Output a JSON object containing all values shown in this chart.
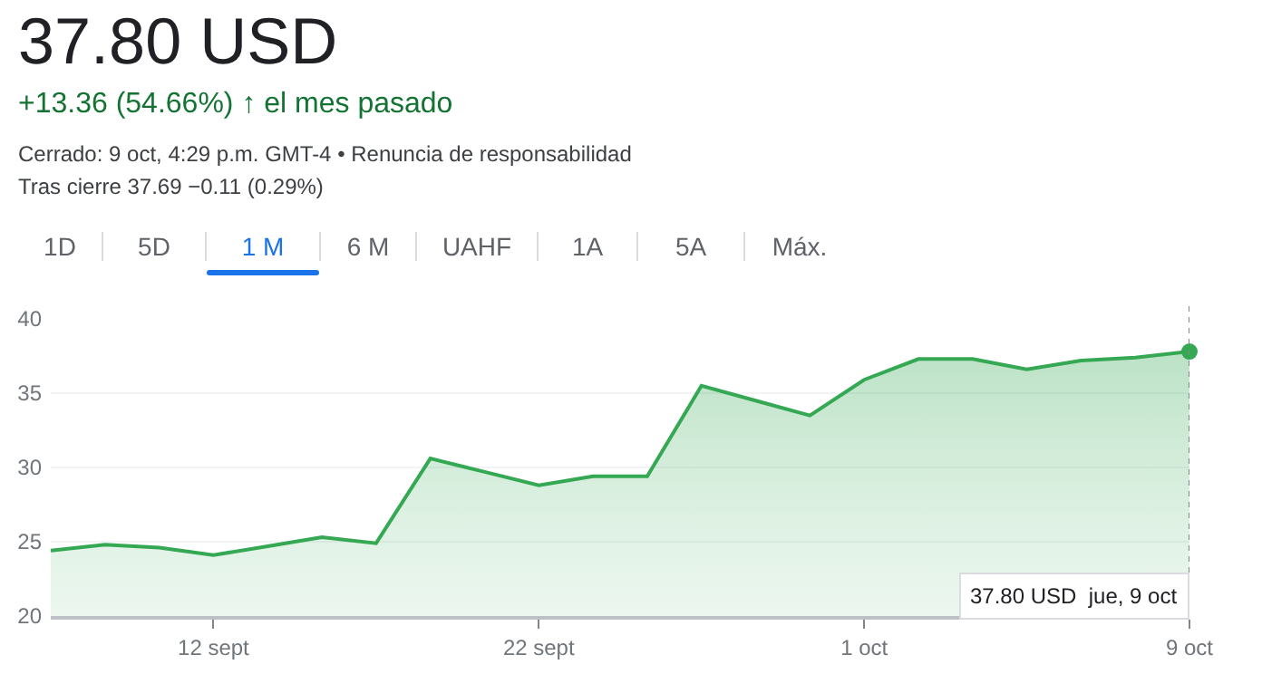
{
  "chart_data": {
    "type": "area",
    "title": "37.80 USD",
    "subtitle": "+13.36 (54.66%) ↑ el mes pasado",
    "annotations": [
      "Cerrado: 9 oct, 4:29 p.m. GMT-4 • Renuncia de responsabilidad",
      "Tras cierre 37.69 −0.11 (0.29%)",
      "1D",
      "5D",
      "1 M",
      "6 M",
      "UAHF",
      "1A",
      "5A",
      "Máx.",
      "37.80 USD  jue, 9 oct"
    ],
    "categories": [
      null,
      null,
      null,
      "12 sept",
      null,
      null,
      null,
      null,
      null,
      "22 sept",
      null,
      null,
      null,
      null,
      null,
      "1 oct",
      null,
      null,
      null,
      null,
      null,
      "9 oct"
    ],
    "series": [
      {
        "color": "#34a853",
        "values": [
          24.4,
          24.8,
          24.6,
          24.1,
          24.7,
          25.3,
          24.9,
          30.6,
          29.7,
          28.8,
          29.4,
          29.4,
          35.5,
          34.5,
          33.5,
          35.9,
          37.3,
          37.3,
          36.6,
          37.2,
          37.4,
          37.8
        ]
      }
    ],
    "ylim": [
      20,
      40
    ],
    "yticks": [
      20,
      25,
      30,
      35,
      40
    ],
    "grid": "y",
    "marker": "none",
    "line_style": "solid",
    "ref_lines": [
      {
        "axis": "x",
        "value": "9 oct",
        "line_style": "dotted",
        "color": "#80868b"
      }
    ]
  }
}
